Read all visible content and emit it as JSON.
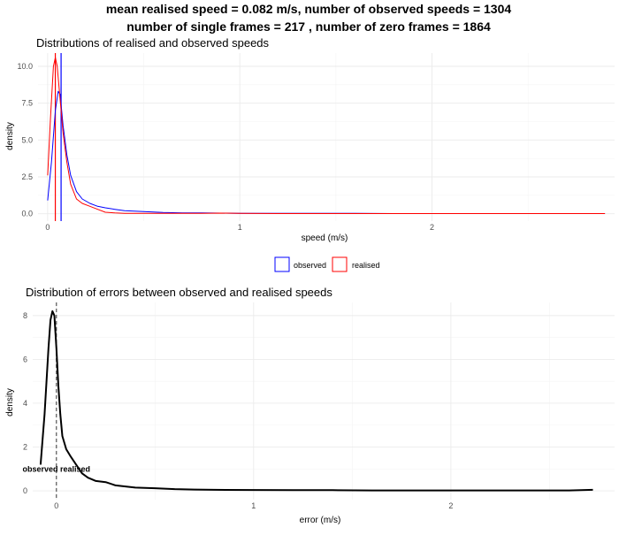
{
  "figure": {
    "title_line1": "mean realised speed = 0.082 m/s, number of observed speeds = 1304",
    "title_line2": "number of single frames = 217 , number of zero frames = 1864"
  },
  "colors": {
    "observed": "#0000ff",
    "realised": "#ff0000",
    "error": "#000000",
    "ref_line": "#555555"
  },
  "chart_data": [
    {
      "type": "line",
      "title": "Distributions of realised and observed speeds",
      "xlabel": "speed (m/s)",
      "ylabel": "density",
      "xlim": [
        -0.05,
        2.95
      ],
      "ylim": [
        -0.5,
        10.9
      ],
      "x_ticks": [
        0,
        1,
        2
      ],
      "x_tick_labels": [
        "0",
        "1",
        "2"
      ],
      "y_ticks": [
        0,
        2.5,
        5,
        7.5,
        10
      ],
      "y_tick_labels": [
        "0.0",
        "2.5",
        "5.0",
        "7.5",
        "10.0"
      ],
      "legend_position": "bottom",
      "vlines": [
        {
          "series": "realised",
          "x": 0.04
        },
        {
          "series": "observed",
          "x": 0.07
        }
      ],
      "series": [
        {
          "name": "observed",
          "x": [
            0.0,
            0.02,
            0.04,
            0.055,
            0.065,
            0.08,
            0.1,
            0.12,
            0.15,
            0.18,
            0.22,
            0.26,
            0.3,
            0.35,
            0.4,
            0.5,
            0.6,
            0.7,
            0.8,
            0.9,
            1.0,
            1.2,
            1.4,
            1.6,
            1.8,
            2.0,
            2.2,
            2.4,
            2.6,
            2.8,
            2.9
          ],
          "values": [
            0.9,
            3.5,
            7.0,
            8.3,
            8.1,
            6.0,
            4.0,
            2.6,
            1.5,
            1.0,
            0.7,
            0.5,
            0.4,
            0.3,
            0.2,
            0.15,
            0.08,
            0.05,
            0.06,
            0.04,
            0.03,
            0.02,
            0.02,
            0.02,
            0.01,
            0.01,
            0.01,
            0.01,
            0.01,
            0.01,
            0.01
          ]
        },
        {
          "name": "realised",
          "x": [
            0.0,
            0.015,
            0.03,
            0.04,
            0.05,
            0.06,
            0.08,
            0.1,
            0.12,
            0.15,
            0.18,
            0.22,
            0.26,
            0.3,
            0.35,
            0.4,
            0.5,
            0.6,
            0.7,
            0.8,
            0.9,
            1.0,
            1.2,
            1.4,
            1.6,
            1.8,
            2.0,
            2.2,
            2.4,
            2.6,
            2.8,
            2.9
          ],
          "values": [
            2.6,
            6.5,
            10.0,
            10.6,
            10.0,
            8.5,
            5.5,
            3.5,
            2.0,
            1.0,
            0.7,
            0.5,
            0.3,
            0.1,
            0.05,
            0.03,
            0.03,
            0.02,
            0.02,
            0.02,
            0.04,
            0.02,
            0.01,
            0.01,
            0.01,
            0.01,
            0.01,
            0.01,
            0.01,
            0.01,
            0.01,
            0.01
          ]
        }
      ]
    },
    {
      "type": "line",
      "title": "Distribution of errors between observed and realised speeds",
      "xlabel": "error (m/s)",
      "ylabel": "density",
      "xlim": [
        -0.12,
        2.83
      ],
      "ylim": [
        -0.4,
        8.6
      ],
      "x_ticks": [
        0,
        1,
        2
      ],
      "x_tick_labels": [
        "0",
        "1",
        "2"
      ],
      "y_ticks": [
        0,
        2,
        4,
        6,
        8
      ],
      "y_tick_labels": [
        "0",
        "2",
        "4",
        "6",
        "8"
      ],
      "annotation": {
        "text": "observed realised",
        "x": 0.0,
        "y": 1.0
      },
      "vline": {
        "x": 0.0,
        "style": "dashed"
      },
      "series": [
        {
          "name": "error",
          "x": [
            -0.08,
            -0.06,
            -0.04,
            -0.03,
            -0.02,
            -0.01,
            0.0,
            0.01,
            0.02,
            0.03,
            0.05,
            0.07,
            0.1,
            0.13,
            0.16,
            0.2,
            0.25,
            0.3,
            0.35,
            0.4,
            0.5,
            0.6,
            0.7,
            0.8,
            1.0,
            1.2,
            1.4,
            1.6,
            1.8,
            2.0,
            2.2,
            2.4,
            2.6,
            2.72
          ],
          "values": [
            1.2,
            3.5,
            6.5,
            7.8,
            8.2,
            8.0,
            6.5,
            4.8,
            3.5,
            2.5,
            1.9,
            1.6,
            1.2,
            0.8,
            0.6,
            0.45,
            0.4,
            0.25,
            0.2,
            0.15,
            0.12,
            0.08,
            0.06,
            0.05,
            0.04,
            0.03,
            0.03,
            0.02,
            0.02,
            0.02,
            0.02,
            0.02,
            0.02,
            0.05
          ]
        }
      ]
    }
  ]
}
